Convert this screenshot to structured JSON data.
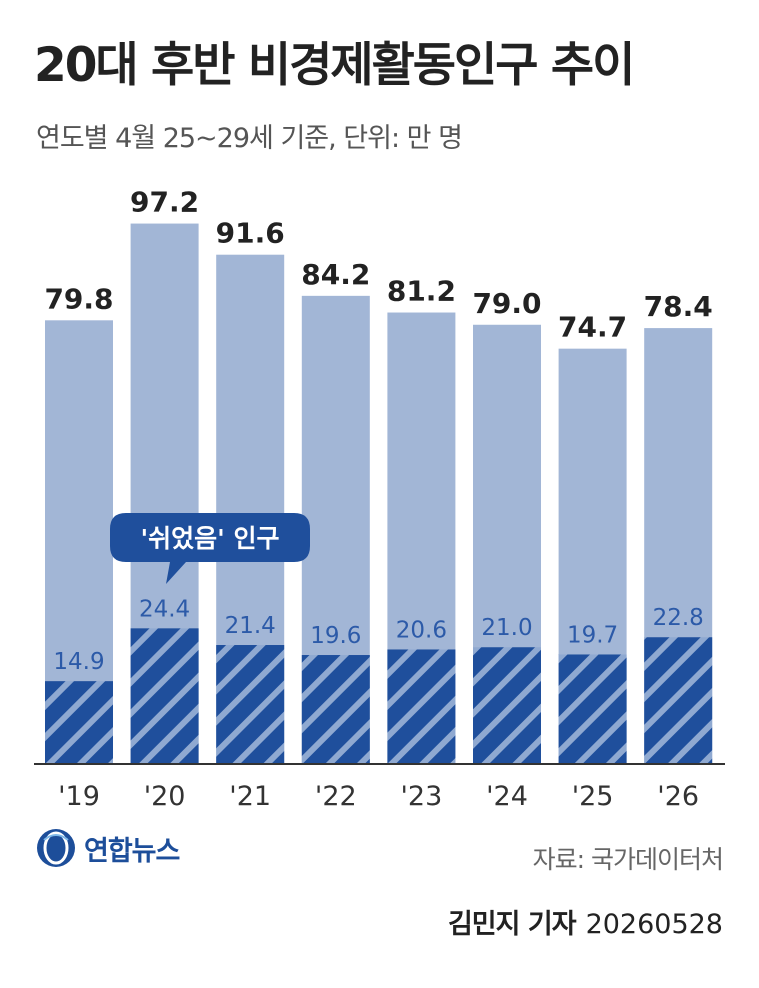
{
  "title": "20대 후반 비경제활동인구 추이",
  "subtitle": "연도별 4월 25~29세 기준, 단위: 만 명",
  "chart_data": {
    "type": "bar",
    "categories": [
      "'19",
      "'20",
      "'21",
      "'22",
      "'23",
      "'24",
      "'25",
      "'26"
    ],
    "series": [
      {
        "name": "",
        "values": [
          79.8,
          97.2,
          91.6,
          84.2,
          81.2,
          79.0,
          74.7,
          78.4
        ]
      },
      {
        "name": "'쉬었음' 인구",
        "values": [
          14.9,
          24.4,
          21.4,
          19.6,
          20.6,
          21.0,
          19.7,
          22.8
        ]
      }
    ],
    "total_labels": [
      "79.8",
      "97.2",
      "91.6",
      "84.2",
      "81.2",
      "79.0",
      "74.7",
      "78.4"
    ],
    "sub_labels": [
      "14.9",
      "24.4",
      "21.4",
      "19.6",
      "20.6",
      "21.0",
      "19.7",
      "22.8"
    ],
    "callout": "'쉬었음' 인구",
    "ylim": [
      0,
      100
    ],
    "grid": false,
    "colors": {
      "total": "#a2b6d6",
      "sub": "#1f4f9c",
      "stripe": "#8fa9d1",
      "sub_label": "#2c5aa8",
      "callout": "#1f4f9c"
    }
  },
  "logo": {
    "text": "연합뉴스",
    "icon": "yonhap-globe-icon"
  },
  "source": "자료: 국가데이터처",
  "reporter": "김민지 기자",
  "date": "20260528"
}
